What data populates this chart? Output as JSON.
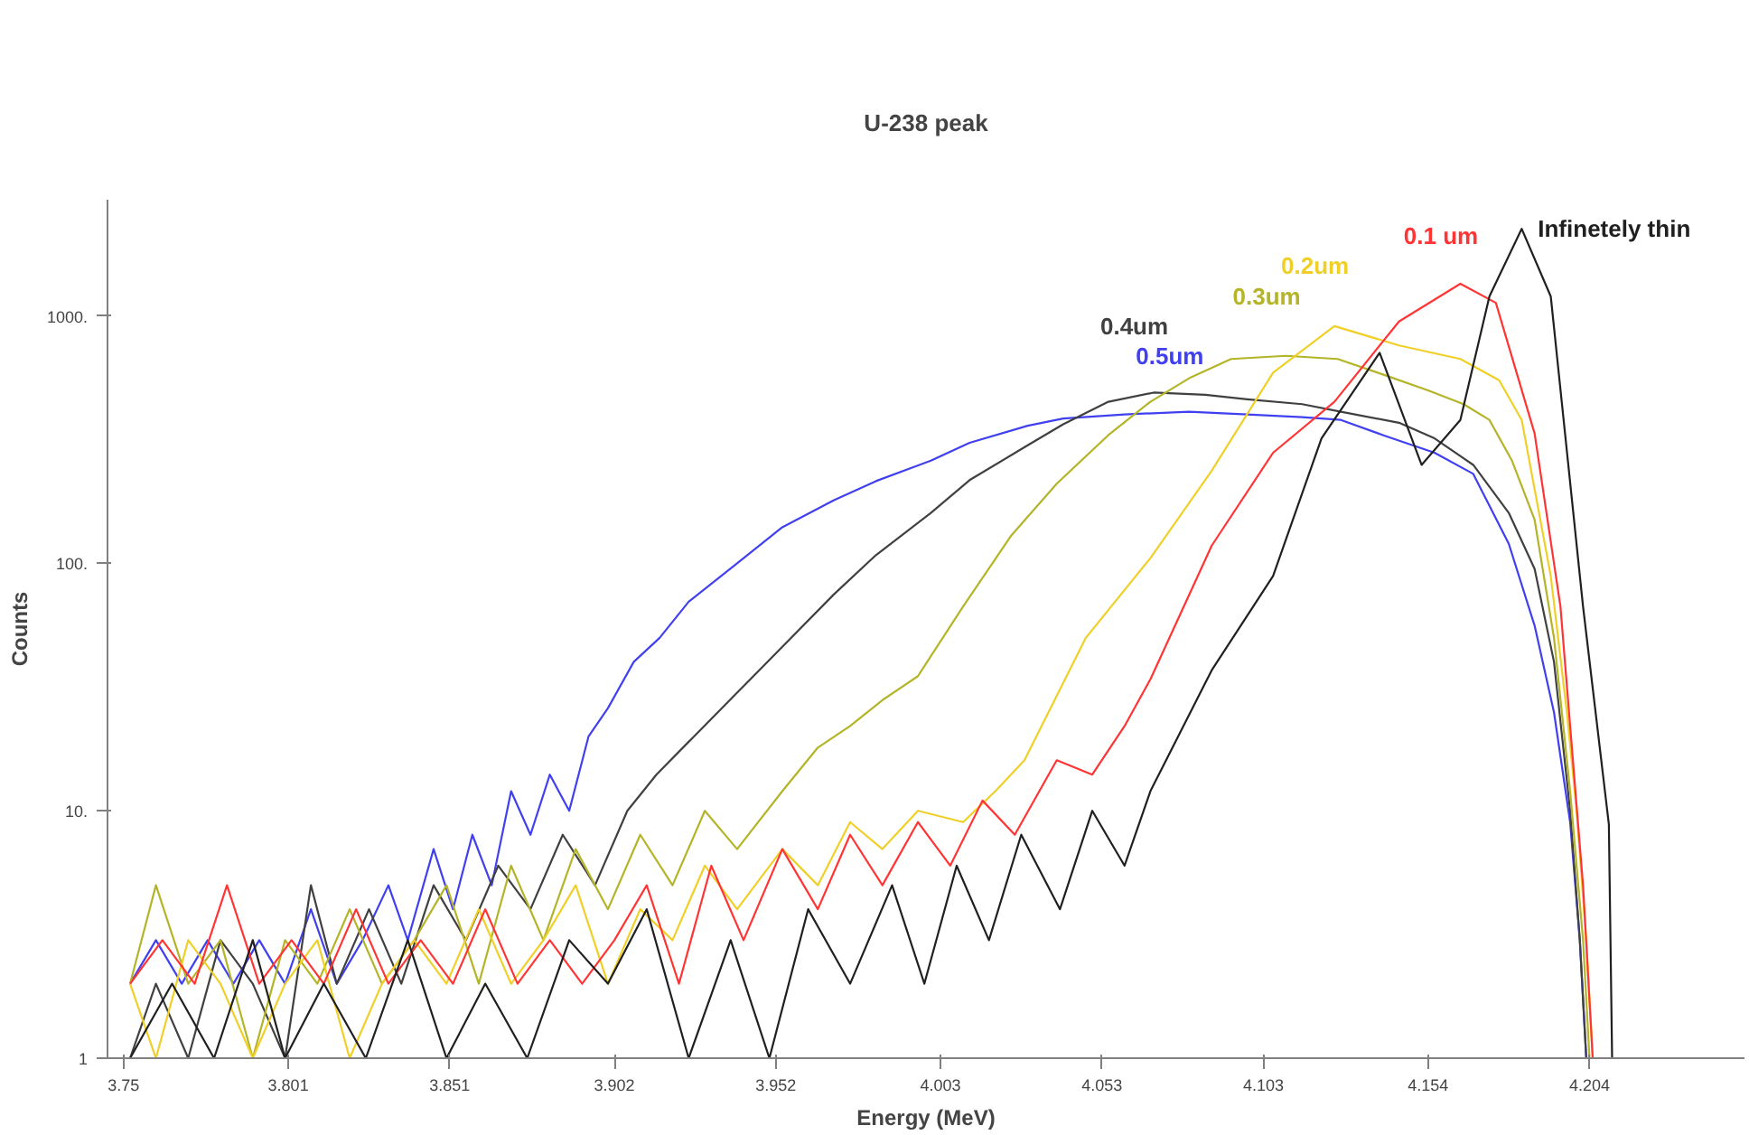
{
  "chart_data": {
    "type": "line",
    "title": "U-238 peak",
    "xlabel": "Energy (MeV)",
    "ylabel": "Counts",
    "log": "y",
    "grid": false,
    "xlim": [
      3.745,
      4.252
    ],
    "ylim": [
      1,
      2950
    ],
    "xticks": [
      3.75,
      3.801,
      3.851,
      3.902,
      3.952,
      4.003,
      4.053,
      4.103,
      4.154,
      4.204
    ],
    "yticks": [
      {
        "value": 1,
        "label": "1"
      },
      {
        "value": 10,
        "label": "10."
      },
      {
        "value": 100,
        "label": "100."
      },
      {
        "value": 1000,
        "label": "1000."
      }
    ],
    "series": [
      {
        "name": "0.5um",
        "color": "#4040f0",
        "x": [
          3.752,
          3.76,
          3.768,
          3.776,
          3.784,
          3.792,
          3.8,
          3.808,
          3.816,
          3.824,
          3.832,
          3.838,
          3.846,
          3.852,
          3.858,
          3.864,
          3.87,
          3.876,
          3.882,
          3.888,
          3.894,
          3.9,
          3.908,
          3.916,
          3.925,
          3.94,
          3.954,
          3.97,
          3.983,
          4.0,
          4.012,
          4.03,
          4.041,
          4.06,
          4.08,
          4.098,
          4.115,
          4.127,
          4.14,
          4.156,
          4.168,
          4.179,
          4.187,
          4.193,
          4.198,
          4.201,
          4.203
        ],
        "values": [
          2,
          3,
          2,
          3,
          2,
          3,
          2,
          4,
          2,
          3,
          5,
          3,
          7,
          4,
          8,
          5,
          12,
          8,
          14,
          10,
          20,
          26,
          40,
          50,
          70,
          100,
          140,
          180,
          215,
          260,
          307,
          360,
          385,
          400,
          410,
          400,
          390,
          380,
          330,
          280,
          230,
          120,
          56,
          25,
          9,
          3,
          1
        ]
      },
      {
        "name": "0.4um",
        "color": "#404040",
        "x": [
          3.752,
          3.76,
          3.77,
          3.78,
          3.79,
          3.8,
          3.808,
          3.816,
          3.826,
          3.836,
          3.846,
          3.856,
          3.866,
          3.876,
          3.886,
          3.896,
          3.906,
          3.915,
          3.925,
          3.94,
          3.954,
          3.97,
          3.983,
          4.0,
          4.012,
          4.03,
          4.041,
          4.055,
          4.069,
          4.085,
          4.098,
          4.115,
          4.127,
          4.145,
          4.156,
          4.168,
          4.179,
          4.187,
          4.193,
          4.198,
          4.201,
          4.203
        ],
        "values": [
          1,
          2,
          1,
          3,
          2,
          1,
          5,
          2,
          4,
          2,
          5,
          3,
          6,
          4,
          8,
          5,
          10,
          14,
          19,
          30,
          46,
          75,
          108,
          160,
          217,
          300,
          365,
          450,
          490,
          480,
          460,
          440,
          410,
          370,
          320,
          250,
          160,
          95,
          40,
          10,
          3,
          1
        ]
      },
      {
        "name": "0.3um",
        "color": "#b4b428",
        "x": [
          3.752,
          3.76,
          3.77,
          3.78,
          3.79,
          3.8,
          3.81,
          3.82,
          3.83,
          3.84,
          3.85,
          3.86,
          3.87,
          3.88,
          3.89,
          3.9,
          3.91,
          3.92,
          3.93,
          3.94,
          3.954,
          3.965,
          3.975,
          3.985,
          3.996,
          4.01,
          4.025,
          4.039,
          4.055,
          4.068,
          4.08,
          4.093,
          4.11,
          4.126,
          4.14,
          4.154,
          4.165,
          4.173,
          4.18,
          4.187,
          4.193,
          4.198,
          4.202,
          4.204
        ],
        "values": [
          2,
          5,
          2,
          3,
          1,
          3,
          2,
          4,
          2,
          3,
          5,
          2,
          6,
          3,
          7,
          4,
          8,
          5,
          10,
          7,
          12,
          18,
          22,
          28,
          35,
          67,
          130,
          210,
          330,
          450,
          560,
          670,
          690,
          670,
          580,
          500,
          440,
          380,
          260,
          150,
          50,
          12,
          3,
          1
        ]
      },
      {
        "name": "0.2um",
        "color": "#f0d028",
        "x": [
          3.752,
          3.76,
          3.77,
          3.78,
          3.79,
          3.8,
          3.81,
          3.82,
          3.83,
          3.84,
          3.85,
          3.86,
          3.87,
          3.88,
          3.89,
          3.9,
          3.91,
          3.92,
          3.93,
          3.94,
          3.954,
          3.965,
          3.975,
          3.985,
          3.996,
          4.01,
          4.02,
          4.029,
          4.048,
          4.068,
          4.087,
          4.106,
          4.125,
          4.145,
          4.164,
          4.176,
          4.183,
          4.192,
          4.197,
          4.2,
          4.203,
          4.205
        ],
        "values": [
          2,
          1,
          3,
          2,
          1,
          2,
          3,
          1,
          2,
          3,
          2,
          4,
          2,
          3,
          5,
          2,
          4,
          3,
          6,
          4,
          7,
          5,
          9,
          7,
          10,
          9,
          12,
          16,
          50,
          105,
          237,
          590,
          910,
          760,
          670,
          550,
          380,
          89,
          25,
          10,
          3,
          1
        ]
      },
      {
        "name": "0.1 um",
        "color": "#ff3535",
        "x": [
          3.752,
          3.762,
          3.772,
          3.782,
          3.792,
          3.802,
          3.812,
          3.822,
          3.832,
          3.842,
          3.852,
          3.862,
          3.872,
          3.882,
          3.892,
          3.902,
          3.912,
          3.922,
          3.932,
          3.942,
          3.954,
          3.965,
          3.975,
          3.985,
          3.996,
          4.006,
          4.016,
          4.026,
          4.039,
          4.05,
          4.06,
          4.068,
          4.087,
          4.106,
          4.125,
          4.145,
          4.164,
          4.175,
          4.187,
          4.195,
          4.202,
          4.205
        ],
        "values": [
          2,
          3,
          2,
          5,
          2,
          3,
          2,
          4,
          2,
          3,
          2,
          4,
          2,
          3,
          2,
          3,
          5,
          2,
          6,
          3,
          7,
          4,
          8,
          5,
          9,
          6,
          11,
          8,
          16,
          14,
          22,
          34,
          118,
          280,
          450,
          950,
          1350,
          1130,
          335,
          67,
          5,
          1
        ]
      },
      {
        "name": "Infinetely thin",
        "color": "#202020",
        "x": [
          3.752,
          3.765,
          3.778,
          3.79,
          3.8,
          3.812,
          3.825,
          3.838,
          3.85,
          3.862,
          3.875,
          3.888,
          3.9,
          3.912,
          3.925,
          3.938,
          3.95,
          3.962,
          3.975,
          3.988,
          3.998,
          4.008,
          4.018,
          4.028,
          4.04,
          4.05,
          4.06,
          4.068,
          4.087,
          4.106,
          4.121,
          4.139,
          4.152,
          4.164,
          4.173,
          4.183,
          4.192,
          4.202,
          4.21,
          4.211
        ],
        "values": [
          1,
          2,
          1,
          3,
          1,
          2,
          1,
          3,
          1,
          2,
          1,
          3,
          2,
          4,
          1,
          3,
          1,
          4,
          2,
          5,
          2,
          6,
          3,
          8,
          4,
          10,
          6,
          12,
          37,
          89,
          320,
          710,
          250,
          380,
          1200,
          2250,
          1200,
          67,
          8.8,
          1
        ]
      }
    ]
  }
}
